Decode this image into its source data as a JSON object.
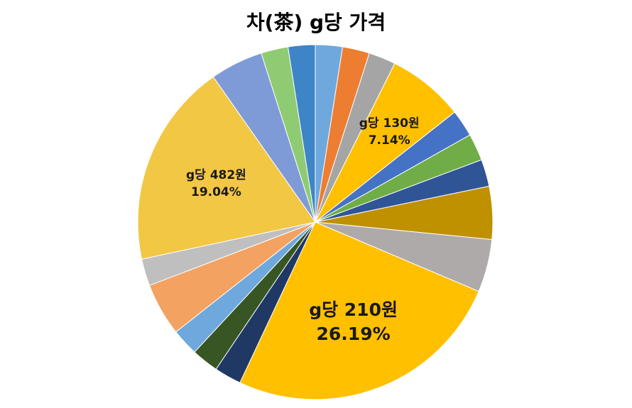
{
  "chart_data": {
    "type": "pie",
    "title": "차(茶) g당 가격",
    "start_angle_deg": 0,
    "direction": "clockwise",
    "slices": [
      {
        "value": 2.52,
        "color": "#6FA8DC"
      },
      {
        "value": 2.52,
        "color": "#ED7D31"
      },
      {
        "value": 2.52,
        "color": "#A5A5A5"
      },
      {
        "value": 7.14,
        "color": "#FFC000",
        "label_lines": [
          "g당 130원",
          "7.14%"
        ]
      },
      {
        "value": 2.52,
        "color": "#4472C4"
      },
      {
        "value": 2.52,
        "color": "#70AD47"
      },
      {
        "value": 2.52,
        "color": "#2F5597"
      },
      {
        "value": 4.93,
        "color": "#BF9000"
      },
      {
        "value": 4.93,
        "color": "#AEAAAA"
      },
      {
        "value": 26.19,
        "color": "#FFC000",
        "label_lines": [
          "g당 210원",
          "26.19%"
        ]
      },
      {
        "value": 2.52,
        "color": "#203864"
      },
      {
        "value": 2.52,
        "color": "#375623"
      },
      {
        "value": 2.52,
        "color": "#6FA8DC"
      },
      {
        "value": 4.93,
        "color": "#F4A261"
      },
      {
        "value": 2.52,
        "color": "#BFBFBF"
      },
      {
        "value": 19.04,
        "color": "#F2C744",
        "label_lines": [
          "g당 482원",
          "19.04%"
        ]
      },
      {
        "value": 4.93,
        "color": "#7F9BD7"
      },
      {
        "value": 2.52,
        "color": "#8FCB72"
      },
      {
        "value": 2.52,
        "color": "#3D85C6"
      }
    ]
  }
}
